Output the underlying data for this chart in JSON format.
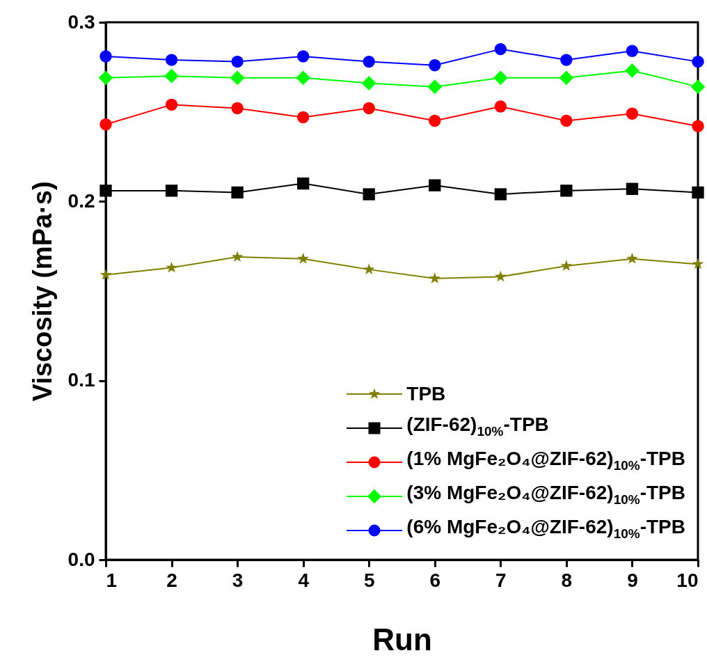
{
  "chart_data": {
    "type": "line",
    "xlabel": "Run",
    "ylabel": "Viscosity (mPa·s)",
    "x": [
      1,
      2,
      3,
      4,
      5,
      6,
      7,
      8,
      9,
      10
    ],
    "series": [
      {
        "name": "TPB",
        "color": "#808000",
        "marker": "star",
        "values": [
          0.159,
          0.163,
          0.169,
          0.168,
          0.162,
          0.157,
          0.158,
          0.164,
          0.168,
          0.165
        ]
      },
      {
        "name": "(ZIF-62)$_{10%}$-TPB",
        "color": "#000000",
        "marker": "square",
        "values": [
          0.206,
          0.206,
          0.205,
          0.21,
          0.204,
          0.209,
          0.204,
          0.206,
          0.207,
          0.205
        ]
      },
      {
        "name": "(1% MgFe₂O₄@ZIF-62)$_{10%}$-TPB",
        "color": "#ff0000",
        "marker": "circle",
        "values": [
          0.243,
          0.254,
          0.252,
          0.247,
          0.252,
          0.245,
          0.253,
          0.245,
          0.249,
          0.242
        ]
      },
      {
        "name": "(3% MgFe₂O₄@ZIF-62)$_{10%}$-TPB",
        "color": "#00ff00",
        "marker": "diamond",
        "values": [
          0.269,
          0.27,
          0.269,
          0.269,
          0.266,
          0.264,
          0.269,
          0.269,
          0.273,
          0.264
        ]
      },
      {
        "name": "(6% MgFe₂O₄@ZIF-62)$_{10%}$-TPB",
        "color": "#0000ff",
        "marker": "circle",
        "values": [
          0.281,
          0.279,
          0.278,
          0.281,
          0.278,
          0.276,
          0.285,
          0.279,
          0.284,
          0.278
        ]
      }
    ],
    "xlim": [
      1,
      10
    ],
    "xticks": [
      1,
      2,
      3,
      4,
      5,
      6,
      7,
      8,
      9,
      10
    ],
    "ylim": [
      0,
      0.3
    ],
    "yticks": [
      {
        "value": 0,
        "label": "0.0"
      },
      0.1,
      0.2,
      0.3
    ],
    "grid": false,
    "legend": "bottom right",
    "line_style": "solid"
  }
}
